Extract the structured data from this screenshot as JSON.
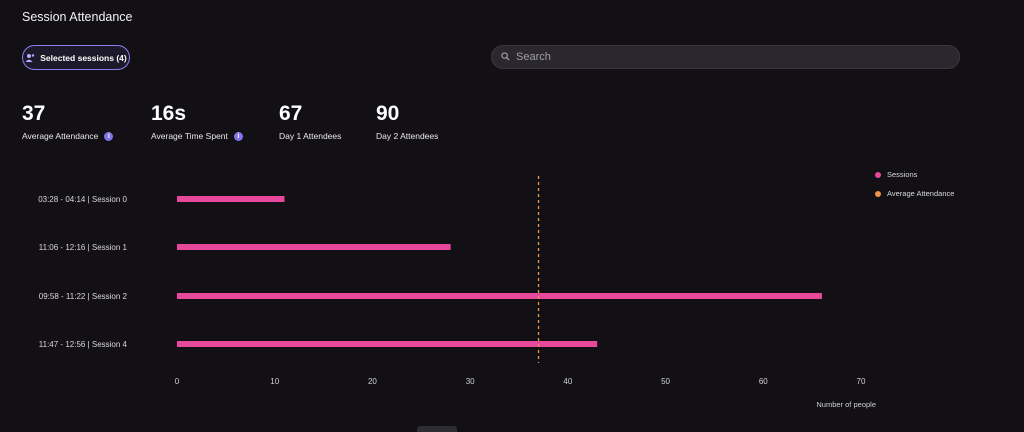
{
  "page": {
    "title": "Session Attendance"
  },
  "toolbar": {
    "sessions_button_label": "Selected sessions (4)",
    "search_placeholder": "Search"
  },
  "stats": [
    {
      "value": "37",
      "label": "Average Attendance",
      "has_info": true
    },
    {
      "value": "16s",
      "label": "Average Time Spent",
      "has_info": true
    },
    {
      "value": "67",
      "label": "Day 1 Attendees",
      "has_info": false
    },
    {
      "value": "90",
      "label": "Day 2 Attendees",
      "has_info": false
    }
  ],
  "legend": [
    {
      "label": "Sessions",
      "color": "#e8489b"
    },
    {
      "label": "Average Attendance",
      "color": "#e8944a"
    }
  ],
  "chart_data": {
    "type": "bar",
    "orientation": "horizontal",
    "categories": [
      "03:28 - 04:14 | Session 0",
      "11:06 - 12:16 | Session 1",
      "09:58 - 11:22 | Session 2",
      "11:47 - 12:56 | Session 4"
    ],
    "series": [
      {
        "name": "Sessions",
        "values": [
          11,
          28,
          66,
          43
        ],
        "color": "#e8489b"
      }
    ],
    "reference_line": {
      "name": "Average Attendance",
      "value": 37,
      "color": "#e8944a",
      "style": "dashed"
    },
    "xlabel": "Number of people",
    "xlim": [
      0,
      70
    ],
    "xticks": [
      0,
      10,
      20,
      30,
      40,
      50,
      60,
      70
    ],
    "grid": false,
    "legend_position": "top-right"
  }
}
